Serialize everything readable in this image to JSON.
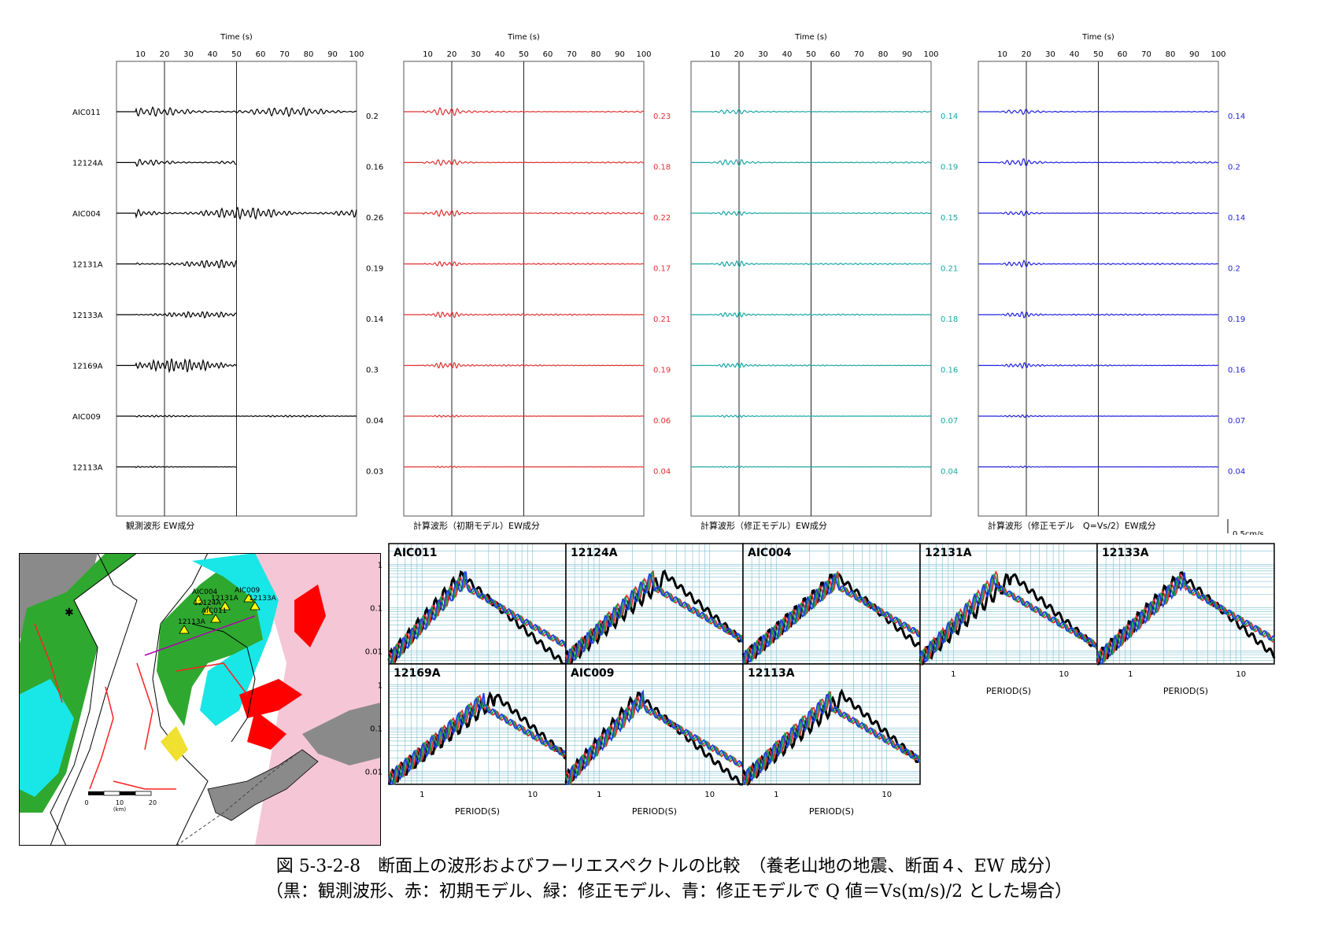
{
  "waveforms": {
    "time_axis_label": "Time (s)",
    "time_ticks": [
      10,
      20,
      30,
      40,
      50,
      60,
      70,
      80,
      90,
      100
    ],
    "stations": [
      "AIC011",
      "12124A",
      "AIC004",
      "12131A",
      "12133A",
      "12169A",
      "AIC009",
      "12113A"
    ],
    "scale_label": "0.5cm/s",
    "panels": [
      {
        "title": "観測波形 EW成分",
        "color": "#000000",
        "amps": [
          "0.2",
          "0.16",
          "0.26",
          "0.19",
          "0.14",
          "0.3",
          "0.04",
          "0.03"
        ],
        "ends": [
          100,
          50,
          100,
          50,
          50,
          50,
          100,
          50
        ]
      },
      {
        "title": "計算波形（初期モデル）EW成分",
        "color": "#e03030",
        "amps": [
          "0.23",
          "0.18",
          "0.22",
          "0.17",
          "0.21",
          "0.19",
          "0.06",
          "0.04"
        ],
        "ends": [
          100,
          100,
          100,
          100,
          100,
          100,
          100,
          100
        ]
      },
      {
        "title": "計算波形（修正モデル）EW成分",
        "color": "#1aa6a6",
        "amps": [
          "0.14",
          "0.19",
          "0.15",
          "0.21",
          "0.18",
          "0.16",
          "0.07",
          "0.04"
        ],
        "ends": [
          100,
          100,
          100,
          100,
          100,
          100,
          100,
          100
        ]
      },
      {
        "title": "計算波形（修正モデル　Q=Vs/2）EW成分",
        "color": "#2020e0",
        "amps": [
          "0.14",
          "0.2",
          "0.14",
          "0.2",
          "0.19",
          "0.16",
          "0.07",
          "0.04"
        ],
        "ends": [
          100,
          100,
          100,
          100,
          100,
          100,
          100,
          100
        ]
      }
    ]
  },
  "spectra": {
    "xlabel": "PERIOD(S)",
    "x_ticks": [
      "1",
      "10"
    ],
    "y_ticks": [
      "1",
      "0.1",
      "0.01"
    ],
    "series_colors": {
      "observed": "#000000",
      "initial": "#e03030",
      "modified": "#1aa04a",
      "modified_q": "#2040e0"
    },
    "panels": [
      {
        "name": "AIC011"
      },
      {
        "name": "12124A"
      },
      {
        "name": "AIC004"
      },
      {
        "name": "12131A"
      },
      {
        "name": "12133A"
      },
      {
        "name": "12169A"
      },
      {
        "name": "AIC009"
      },
      {
        "name": "12113A"
      }
    ]
  },
  "map": {
    "station_labels": [
      "AIC009",
      "12133A",
      "12131A",
      "AIC004",
      "12124A",
      "12113A",
      "AIC011"
    ],
    "scale_ticks": [
      "0",
      "10",
      "20"
    ],
    "scale_unit": "(km)"
  },
  "caption": {
    "line1": "図 5-3-2-8　断面上の波形およびフーリエスペクトルの比較　（養老山地の地震、断面４、EW 成分）",
    "line2": "（黒：観測波形、赤：初期モデル、緑：修正モデル、青：修正モデルで Q 値＝Vs(m/s)/2 とした場合）"
  }
}
